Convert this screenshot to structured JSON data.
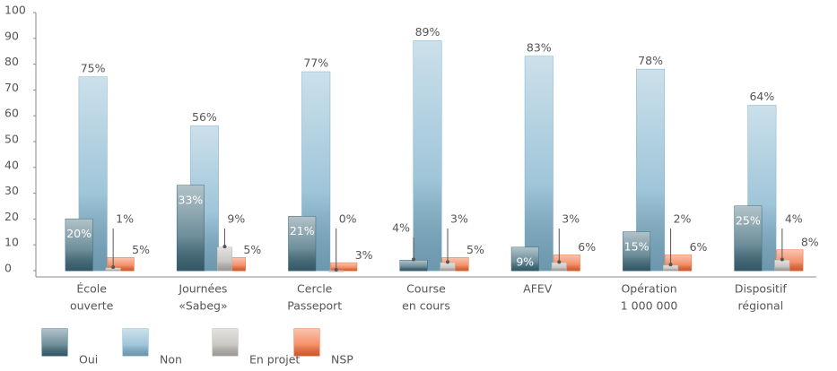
{
  "chart_data": {
    "type": "bar",
    "categories": [
      [
        "École",
        "ouverte"
      ],
      [
        "Journées",
        "«Sabeg»"
      ],
      [
        "Cercle",
        "Passeport"
      ],
      [
        "Course",
        "en cours"
      ],
      [
        "AFEV"
      ],
      [
        "Opération",
        "1 000 000"
      ],
      [
        "Dispositif",
        "régional"
      ]
    ],
    "series": [
      {
        "name": "Oui",
        "color": "#3d6878",
        "values": [
          20,
          33,
          21,
          4,
          9,
          15,
          25
        ],
        "value_labels": [
          "20%",
          "33%",
          "21%",
          "4%",
          "9%",
          "15%",
          "25%"
        ]
      },
      {
        "name": "Non",
        "color": "#7fb2cc",
        "values": [
          75,
          56,
          77,
          89,
          83,
          78,
          64
        ],
        "value_labels": [
          "75%",
          "56%",
          "77%",
          "89%",
          "83%",
          "78%",
          "64%"
        ]
      },
      {
        "name": "En projet",
        "color": "#b8b5b0",
        "values": [
          1,
          9,
          0,
          3,
          3,
          2,
          4
        ],
        "value_labels": [
          "1%",
          "9%",
          "0%",
          "3%",
          "3%",
          "2%",
          "4%"
        ]
      },
      {
        "name": "NSP",
        "color": "#f26a35",
        "values": [
          5,
          5,
          3,
          5,
          6,
          6,
          8
        ],
        "value_labels": [
          "5%",
          "5%",
          "3%",
          "5%",
          "6%",
          "6%",
          "8%"
        ]
      }
    ],
    "ylim": [
      0,
      100
    ],
    "yticks": [
      0,
      10,
      20,
      30,
      40,
      50,
      60,
      70,
      80,
      90,
      100
    ],
    "grid": false
  }
}
